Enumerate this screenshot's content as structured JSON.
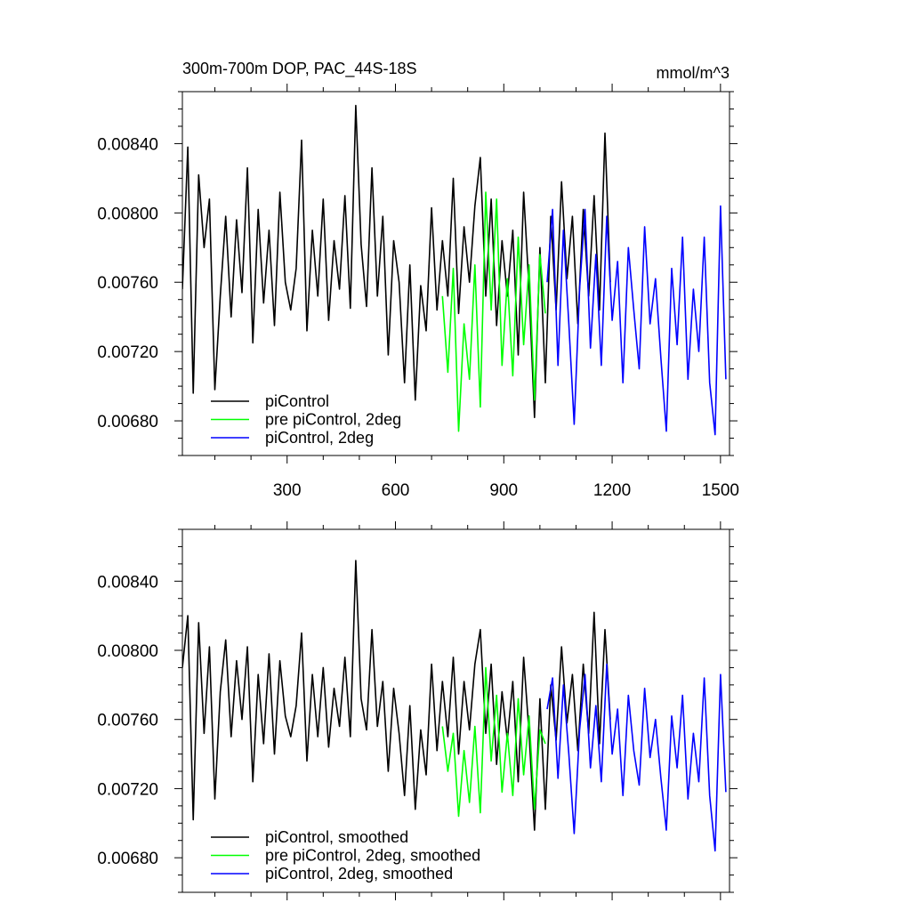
{
  "chart_data": [
    {
      "type": "line",
      "title": "300m-700m DOP, PAC_44S-18S",
      "units_label": "mmol/m^3",
      "xlim": [
        10,
        1525
      ],
      "ylim": [
        0.0066,
        0.0087
      ],
      "x_ticks": [
        300,
        600,
        900,
        1200,
        1500
      ],
      "x_tick_labels": [
        "300",
        "600",
        "900",
        "1200",
        "1500"
      ],
      "y_ticks": [
        0.0068,
        0.0072,
        0.0076,
        0.008,
        0.0084
      ],
      "y_tick_labels": [
        "0.00680",
        "0.00720",
        "0.00760",
        "0.00800",
        "0.00840"
      ],
      "legend_position": "bottom-left",
      "series": [
        {
          "name": "piControl",
          "color": "#000000",
          "x": [
            10,
            25,
            40,
            55,
            70,
            85,
            100,
            115,
            130,
            145,
            160,
            175,
            190,
            205,
            220,
            235,
            250,
            265,
            280,
            295,
            310,
            325,
            340,
            355,
            370,
            385,
            400,
            415,
            430,
            445,
            460,
            475,
            490,
            505,
            520,
            535,
            550,
            565,
            580,
            595,
            610,
            625,
            640,
            655,
            670,
            685,
            700,
            715,
            730,
            745,
            760,
            775,
            790,
            805,
            820,
            835,
            850,
            865,
            880,
            895,
            910,
            925,
            940,
            955,
            970,
            985,
            1000,
            1015,
            1030,
            1045,
            1060,
            1075,
            1090,
            1105,
            1120,
            1135,
            1150,
            1165,
            1180,
            1195
          ],
          "values": [
            0.00756,
            0.00838,
            0.00696,
            0.00822,
            0.0078,
            0.00808,
            0.00698,
            0.00752,
            0.00798,
            0.0074,
            0.00796,
            0.00754,
            0.00826,
            0.00725,
            0.00802,
            0.00748,
            0.0079,
            0.00735,
            0.00812,
            0.0076,
            0.00744,
            0.00768,
            0.00842,
            0.00732,
            0.0079,
            0.00752,
            0.00808,
            0.00738,
            0.00784,
            0.00756,
            0.0081,
            0.00745,
            0.00862,
            0.00782,
            0.00746,
            0.00826,
            0.00752,
            0.00798,
            0.00718,
            0.00784,
            0.0076,
            0.00702,
            0.0077,
            0.00692,
            0.00758,
            0.00732,
            0.00803,
            0.00744,
            0.00784,
            0.00752,
            0.0082,
            0.00742,
            0.00792,
            0.0076,
            0.00804,
            0.00832,
            0.00752,
            0.00808,
            0.00735,
            0.00784,
            0.00752,
            0.0079,
            0.00718,
            0.00812,
            0.00756,
            0.00682,
            0.0078,
            0.00702,
            0.00798,
            0.00744,
            0.00818,
            0.00762,
            0.00798,
            0.00736,
            0.00802,
            0.00752,
            0.0081,
            0.00744,
            0.00846,
            0.0076
          ]
        },
        {
          "name": "pre piControl, 2deg",
          "color": "#00ff00",
          "x": [
            730,
            745,
            760,
            775,
            790,
            805,
            820,
            835,
            850,
            865,
            880,
            895,
            910,
            925,
            940,
            955,
            970,
            985,
            1000,
            1015
          ],
          "values": [
            0.00752,
            0.00708,
            0.00768,
            0.00674,
            0.00736,
            0.00704,
            0.0077,
            0.00688,
            0.00812,
            0.00744,
            0.00808,
            0.00712,
            0.00762,
            0.00706,
            0.00786,
            0.00724,
            0.0077,
            0.00692,
            0.00776,
            0.00742
          ]
        },
        {
          "name": "piControl, 2deg",
          "color": "#0000ff",
          "x": [
            1020,
            1035,
            1050,
            1065,
            1080,
            1095,
            1110,
            1125,
            1140,
            1155,
            1170,
            1185,
            1200,
            1215,
            1230,
            1245,
            1260,
            1275,
            1290,
            1305,
            1320,
            1335,
            1350,
            1365,
            1380,
            1395,
            1410,
            1425,
            1440,
            1455,
            1470,
            1485,
            1500,
            1515
          ],
          "values": [
            0.0076,
            0.00802,
            0.00712,
            0.0079,
            0.00736,
            0.00678,
            0.00756,
            0.00802,
            0.00722,
            0.00776,
            0.00712,
            0.00798,
            0.00738,
            0.00772,
            0.00702,
            0.0078,
            0.00744,
            0.0071,
            0.00792,
            0.00736,
            0.00762,
            0.00716,
            0.00674,
            0.00768,
            0.00724,
            0.00786,
            0.00704,
            0.00756,
            0.0072,
            0.00786,
            0.00702,
            0.00672,
            0.00804,
            0.00704
          ]
        }
      ]
    },
    {
      "type": "line",
      "xlim": [
        10,
        1525
      ],
      "ylim": [
        0.0066,
        0.0087
      ],
      "x_ticks": [
        300,
        600,
        900,
        1200,
        1500
      ],
      "y_ticks": [
        0.0068,
        0.0072,
        0.0076,
        0.008,
        0.0084
      ],
      "y_tick_labels": [
        "0.00680",
        "0.00720",
        "0.00760",
        "0.00800",
        "0.00840"
      ],
      "legend_position": "bottom-left",
      "series": [
        {
          "name": "piControl, smoothed",
          "color": "#000000",
          "x": [
            10,
            25,
            40,
            55,
            70,
            85,
            100,
            115,
            130,
            145,
            160,
            175,
            190,
            205,
            220,
            235,
            250,
            265,
            280,
            295,
            310,
            325,
            340,
            355,
            370,
            385,
            400,
            415,
            430,
            445,
            460,
            475,
            490,
            505,
            520,
            535,
            550,
            565,
            580,
            595,
            610,
            625,
            640,
            655,
            670,
            685,
            700,
            715,
            730,
            745,
            760,
            775,
            790,
            805,
            820,
            835,
            850,
            865,
            880,
            895,
            910,
            925,
            940,
            955,
            970,
            985,
            1000,
            1015,
            1030,
            1045,
            1060,
            1075,
            1090,
            1105,
            1120,
            1135,
            1150,
            1165,
            1180,
            1195
          ],
          "values": [
            0.0079,
            0.0082,
            0.00702,
            0.00816,
            0.00752,
            0.00802,
            0.00714,
            0.00776,
            0.00806,
            0.0075,
            0.00794,
            0.0076,
            0.00802,
            0.00724,
            0.00786,
            0.00746,
            0.00798,
            0.0074,
            0.00794,
            0.00762,
            0.0075,
            0.00768,
            0.0081,
            0.00736,
            0.00786,
            0.0075,
            0.0079,
            0.00744,
            0.00778,
            0.00756,
            0.00796,
            0.0075,
            0.00852,
            0.00772,
            0.00754,
            0.00812,
            0.00756,
            0.00782,
            0.0073,
            0.00778,
            0.00752,
            0.00716,
            0.00768,
            0.00708,
            0.00754,
            0.00728,
            0.00792,
            0.00742,
            0.00782,
            0.0075,
            0.00796,
            0.0074,
            0.00782,
            0.00754,
            0.00792,
            0.00812,
            0.00752,
            0.00792,
            0.00734,
            0.00776,
            0.00748,
            0.00782,
            0.00724,
            0.00796,
            0.00752,
            0.00696,
            0.00772,
            0.00708,
            0.0078,
            0.00748,
            0.00802,
            0.00758,
            0.00786,
            0.00742,
            0.00792,
            0.00752,
            0.00822,
            0.00746,
            0.00812,
            0.0076
          ]
        },
        {
          "name": "pre piControl, 2deg, smoothed",
          "color": "#00ff00",
          "x": [
            730,
            745,
            760,
            775,
            790,
            805,
            820,
            835,
            850,
            865,
            880,
            895,
            910,
            925,
            940,
            955,
            970,
            985,
            1000,
            1015
          ],
          "values": [
            0.00756,
            0.0073,
            0.00752,
            0.00704,
            0.00742,
            0.00712,
            0.00756,
            0.00706,
            0.0079,
            0.00736,
            0.00774,
            0.00718,
            0.00752,
            0.00716,
            0.00772,
            0.00728,
            0.00762,
            0.00708,
            0.00754,
            0.00746
          ]
        },
        {
          "name": "piControl, 2deg, smoothed",
          "color": "#0000ff",
          "x": [
            1020,
            1035,
            1050,
            1065,
            1080,
            1095,
            1110,
            1125,
            1140,
            1155,
            1170,
            1185,
            1200,
            1215,
            1230,
            1245,
            1260,
            1275,
            1290,
            1305,
            1320,
            1335,
            1350,
            1365,
            1380,
            1395,
            1410,
            1425,
            1440,
            1455,
            1470,
            1485,
            1500,
            1515
          ],
          "values": [
            0.00766,
            0.00784,
            0.00726,
            0.0078,
            0.0074,
            0.00694,
            0.00754,
            0.00786,
            0.00732,
            0.00768,
            0.00724,
            0.00792,
            0.0074,
            0.00766,
            0.00716,
            0.00774,
            0.00742,
            0.00722,
            0.00778,
            0.00738,
            0.0076,
            0.00726,
            0.00696,
            0.00762,
            0.00732,
            0.00774,
            0.00714,
            0.00752,
            0.00724,
            0.00784,
            0.00716,
            0.00684,
            0.00786,
            0.00718
          ]
        }
      ]
    }
  ]
}
